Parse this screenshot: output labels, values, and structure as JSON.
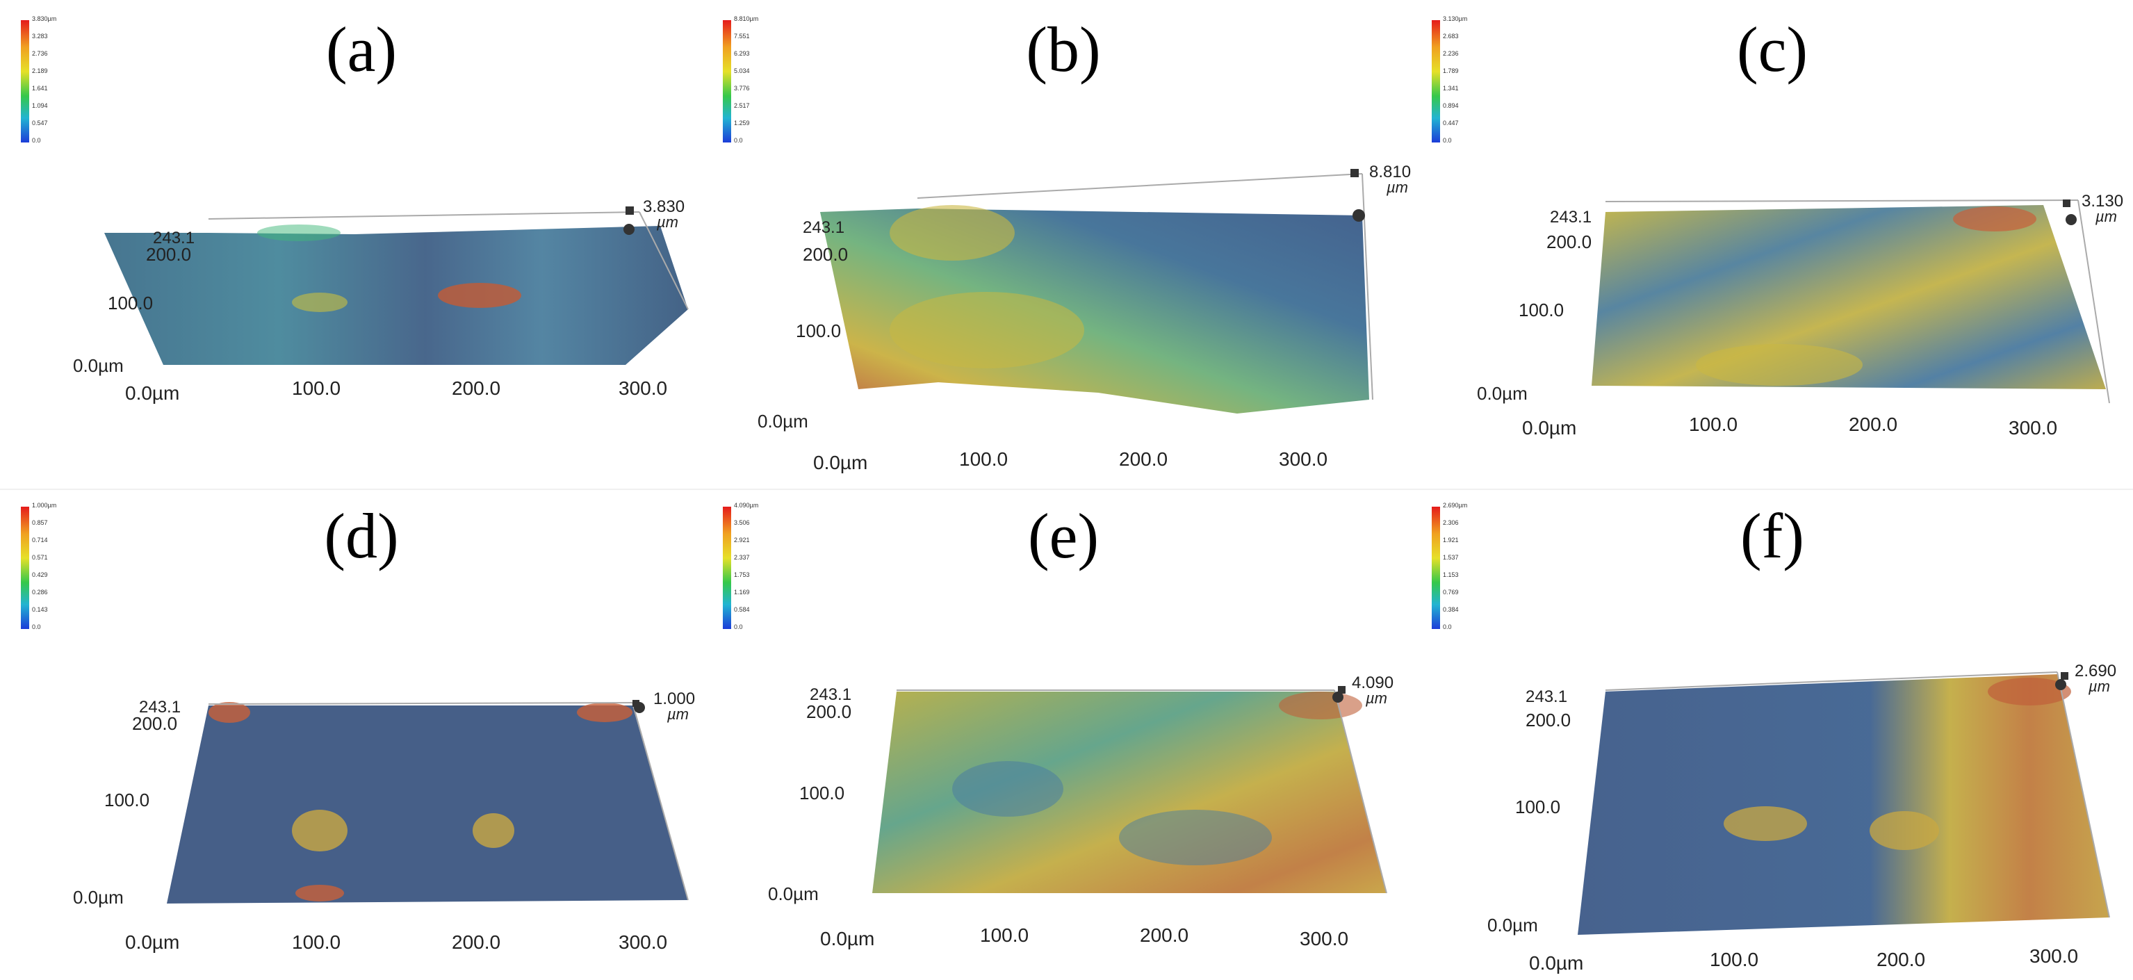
{
  "panels": [
    {
      "id": "a",
      "label": "(a)",
      "max": "3.830",
      "unit": "µm",
      "legend": [
        "3.830µm",
        "3.283",
        "2.736",
        "2.189",
        "1.641",
        "1.094",
        "0.547",
        "0.0"
      ],
      "yticks": [
        "243.1",
        "200.0",
        "100.0",
        "0.0µm"
      ],
      "xticks": [
        "0.0µm",
        "100.0",
        "200.0",
        "300.0"
      ]
    },
    {
      "id": "b",
      "label": "(b)",
      "max": "8.810",
      "unit": "µm",
      "legend": [
        "8.810µm",
        "7.551",
        "6.293",
        "5.034",
        "3.776",
        "2.517",
        "1.259",
        "0.0"
      ],
      "yticks": [
        "243.1",
        "200.0",
        "100.0",
        "0.0µm"
      ],
      "xticks": [
        "0.0µm",
        "100.0",
        "200.0",
        "300.0"
      ]
    },
    {
      "id": "c",
      "label": "(c)",
      "max": "3.130",
      "unit": "µm",
      "legend": [
        "3.130µm",
        "2.683",
        "2.236",
        "1.789",
        "1.341",
        "0.894",
        "0.447",
        "0.0"
      ],
      "yticks": [
        "243.1",
        "200.0",
        "100.0",
        "0.0µm"
      ],
      "xticks": [
        "0.0µm",
        "100.0",
        "200.0",
        "300.0"
      ]
    },
    {
      "id": "d",
      "label": "(d)",
      "max": "1.000",
      "unit": "µm",
      "legend": [
        "1.000µm",
        "0.857",
        "0.714",
        "0.571",
        "0.429",
        "0.286",
        "0.143",
        "0.0"
      ],
      "yticks": [
        "243.1",
        "200.0",
        "100.0",
        "0.0µm"
      ],
      "xticks": [
        "0.0µm",
        "100.0",
        "200.0",
        "300.0"
      ]
    },
    {
      "id": "e",
      "label": "(e)",
      "max": "4.090",
      "unit": "µm",
      "legend": [
        "4.090µm",
        "3.506",
        "2.921",
        "2.337",
        "1.753",
        "1.169",
        "0.584",
        "0.0"
      ],
      "yticks": [
        "243.1",
        "200.0",
        "100.0",
        "0.0µm"
      ],
      "xticks": [
        "0.0µm",
        "100.0",
        "200.0",
        "300.0"
      ]
    },
    {
      "id": "f",
      "label": "(f)",
      "max": "2.690",
      "unit": "µm",
      "legend": [
        "2.690µm",
        "2.306",
        "1.921",
        "1.537",
        "1.153",
        "0.769",
        "0.384",
        "0.0"
      ],
      "yticks": [
        "243.1",
        "200.0",
        "100.0",
        "0.0µm"
      ],
      "xticks": [
        "0.0µm",
        "100.0",
        "200.0",
        "300.0"
      ]
    }
  ]
}
